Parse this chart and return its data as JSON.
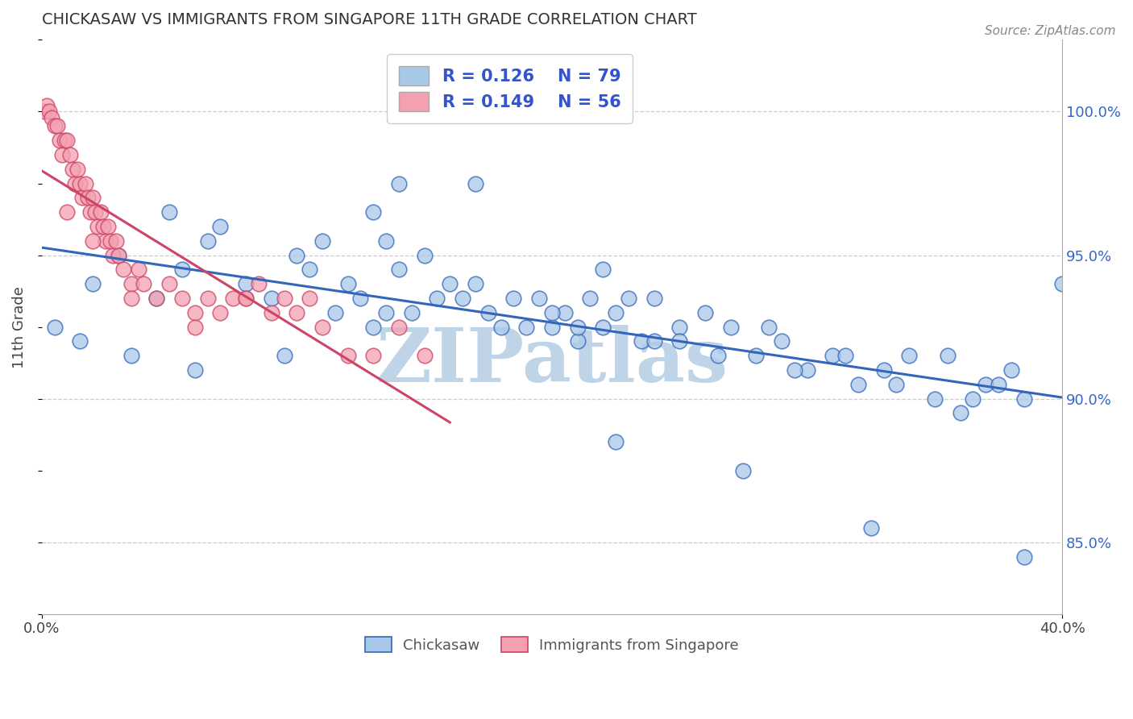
{
  "title": "CHICKASAW VS IMMIGRANTS FROM SINGAPORE 11TH GRADE CORRELATION CHART",
  "source_text": "Source: ZipAtlas.com",
  "ylabel": "11th Grade",
  "ylabel_right_ticks": [
    85.0,
    90.0,
    95.0,
    100.0
  ],
  "xlim": [
    0.0,
    40.0
  ],
  "ylim": [
    82.5,
    102.5
  ],
  "color_blue": "#a8c8e8",
  "color_pink": "#f4a0b0",
  "color_blue_line": "#3366bb",
  "color_pink_line": "#cc4466",
  "color_legend_text": "#3355cc",
  "watermark": "ZIPatlas",
  "watermark_color": "#c0d4e8",
  "blue_scatter_x": [
    0.5,
    1.5,
    2.0,
    3.0,
    4.5,
    5.0,
    5.5,
    6.5,
    7.0,
    8.0,
    9.0,
    10.0,
    10.5,
    11.0,
    11.5,
    12.0,
    12.5,
    13.0,
    13.5,
    14.0,
    14.5,
    15.0,
    15.5,
    16.0,
    16.5,
    17.0,
    17.5,
    18.0,
    18.5,
    19.0,
    19.5,
    20.0,
    20.5,
    21.0,
    21.5,
    22.0,
    22.5,
    23.0,
    23.5,
    24.0,
    25.0,
    26.0,
    27.0,
    28.0,
    29.0,
    30.0,
    31.0,
    32.0,
    33.0,
    34.0,
    35.0,
    36.0,
    37.0,
    38.5,
    40.0,
    13.0,
    13.5,
    20.0,
    21.0,
    22.0,
    24.0,
    25.0,
    26.5,
    28.5,
    29.5,
    31.5,
    33.5,
    35.5,
    36.5,
    37.5,
    38.0,
    14.0,
    17.0,
    22.5,
    27.5,
    32.5,
    38.5,
    3.5,
    6.0,
    9.5
  ],
  "blue_scatter_y": [
    92.5,
    92.0,
    94.0,
    95.0,
    93.5,
    96.5,
    94.5,
    95.5,
    96.0,
    94.0,
    93.5,
    95.0,
    94.5,
    95.5,
    93.0,
    94.0,
    93.5,
    92.5,
    93.0,
    94.5,
    93.0,
    95.0,
    93.5,
    94.0,
    93.5,
    94.0,
    93.0,
    92.5,
    93.5,
    92.5,
    93.5,
    92.5,
    93.0,
    92.0,
    93.5,
    92.5,
    93.0,
    93.5,
    92.0,
    92.0,
    92.5,
    93.0,
    92.5,
    91.5,
    92.0,
    91.0,
    91.5,
    90.5,
    91.0,
    91.5,
    90.0,
    89.5,
    90.5,
    90.0,
    94.0,
    96.5,
    95.5,
    93.0,
    92.5,
    94.5,
    93.5,
    92.0,
    91.5,
    92.5,
    91.0,
    91.5,
    90.5,
    91.5,
    90.0,
    90.5,
    91.0,
    97.5,
    97.5,
    88.5,
    87.5,
    85.5,
    84.5,
    91.5,
    91.0,
    91.5
  ],
  "pink_scatter_x": [
    0.1,
    0.2,
    0.3,
    0.4,
    0.5,
    0.6,
    0.7,
    0.8,
    0.9,
    1.0,
    1.1,
    1.2,
    1.3,
    1.4,
    1.5,
    1.6,
    1.7,
    1.8,
    1.9,
    2.0,
    2.1,
    2.2,
    2.3,
    2.4,
    2.5,
    2.6,
    2.7,
    2.8,
    2.9,
    3.0,
    3.2,
    3.5,
    3.8,
    4.0,
    4.5,
    5.0,
    5.5,
    6.0,
    6.5,
    7.0,
    7.5,
    8.0,
    8.5,
    9.0,
    9.5,
    10.0,
    10.5,
    11.0,
    12.0,
    13.0,
    14.0,
    15.0,
    1.0,
    2.0,
    3.5,
    6.0,
    8.0
  ],
  "pink_scatter_y": [
    100.0,
    100.2,
    100.0,
    99.8,
    99.5,
    99.5,
    99.0,
    98.5,
    99.0,
    99.0,
    98.5,
    98.0,
    97.5,
    98.0,
    97.5,
    97.0,
    97.5,
    97.0,
    96.5,
    97.0,
    96.5,
    96.0,
    96.5,
    96.0,
    95.5,
    96.0,
    95.5,
    95.0,
    95.5,
    95.0,
    94.5,
    94.0,
    94.5,
    94.0,
    93.5,
    94.0,
    93.5,
    93.0,
    93.5,
    93.0,
    93.5,
    93.5,
    94.0,
    93.0,
    93.5,
    93.0,
    93.5,
    92.5,
    91.5,
    91.5,
    92.5,
    91.5,
    96.5,
    95.5,
    93.5,
    92.5,
    93.5
  ]
}
